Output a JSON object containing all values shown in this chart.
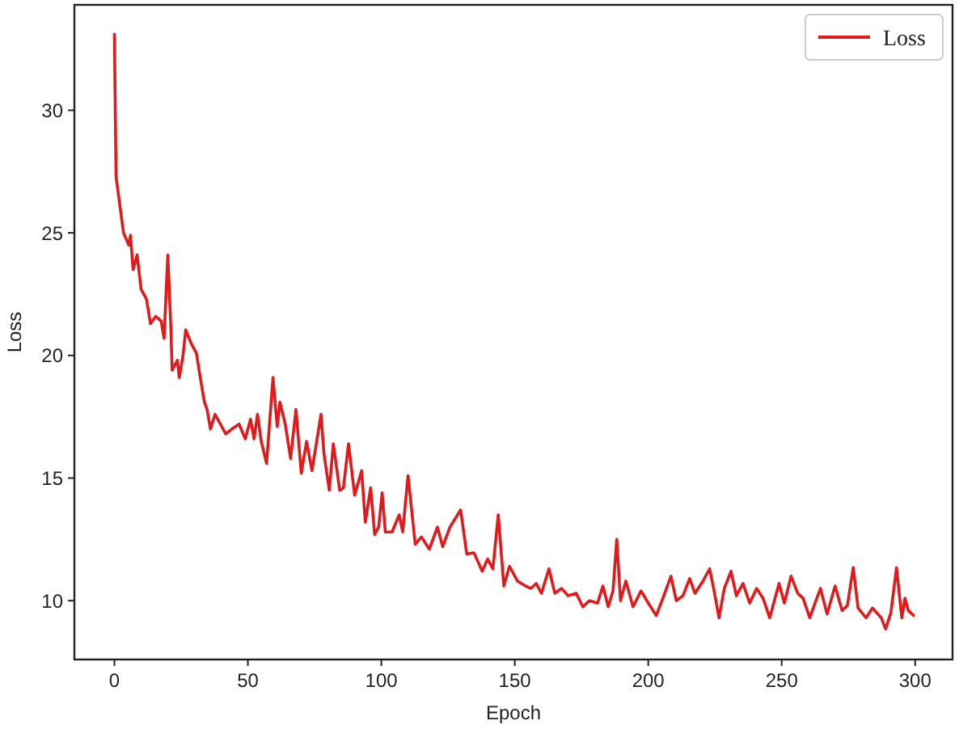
{
  "chart_data": {
    "type": "line",
    "xlabel": "Epoch",
    "ylabel": "Loss",
    "xlim": [
      -15,
      314
    ],
    "ylim": [
      7.6,
      34.3
    ],
    "xticks": [
      0,
      50,
      100,
      150,
      200,
      250,
      300
    ],
    "yticks": [
      10,
      15,
      20,
      25,
      30
    ],
    "grid": false,
    "legend": "top right",
    "line_style": "solid",
    "marker": "none",
    "series": [
      {
        "name": "Loss",
        "color": "#e31a1c",
        "x": [
          0,
          0.6,
          3.4,
          5.4,
          6,
          7,
          8.5,
          10,
          12,
          13.5,
          15.5,
          17.5,
          18.6,
          20,
          21.2,
          21.6,
          23.6,
          24.3,
          25.7,
          26.7,
          28.7,
          30.7,
          32,
          33.7,
          34.7,
          36,
          37.7,
          39.7,
          41.7,
          44,
          46.7,
          49,
          51,
          52.3,
          53.6,
          55,
          57,
          59.4,
          61,
          62,
          64,
          66,
          68,
          70,
          72,
          74,
          77.4,
          78.5,
          80.5,
          82,
          84.4,
          85.8,
          87.7,
          90,
          92.6,
          94,
          96,
          97.5,
          99,
          100.3,
          101.5,
          104,
          106.7,
          108,
          110,
          112.7,
          115,
          118,
          121,
          123,
          125.7,
          129.7,
          132,
          134.7,
          137.8,
          139.8,
          141.8,
          143.8,
          145.9,
          148,
          151,
          154,
          156,
          158,
          160,
          162.8,
          165,
          167.5,
          170,
          173,
          175.5,
          178,
          181,
          183,
          185,
          186.8,
          188.2,
          189.6,
          191.6,
          194.3,
          197.3,
          200.3,
          203,
          205.5,
          208.5,
          210.5,
          213,
          215.5,
          217.5,
          220.5,
          223,
          224.5,
          226.5,
          228.5,
          231,
          233,
          235.5,
          238,
          240.6,
          243,
          245.5,
          249,
          251,
          253.5,
          256,
          258,
          260.5,
          262.5,
          264.5,
          267,
          270,
          272.6,
          274.6,
          276.8,
          278.6,
          281.6,
          284,
          287.3,
          288.9,
          290.9,
          293,
          295,
          296.2,
          297.4,
          299.4
        ],
        "values": [
          33.1,
          27.3,
          25,
          24.5,
          24.9,
          23.5,
          24.1,
          22.7,
          22.3,
          21.3,
          21.6,
          21.4,
          20.7,
          24.1,
          21,
          19.4,
          19.8,
          19.1,
          20,
          21.05,
          20.5,
          20.1,
          19.2,
          18.1,
          17.8,
          17,
          17.6,
          17.2,
          16.8,
          17,
          17.2,
          16.6,
          17.4,
          16.6,
          17.6,
          16.5,
          15.6,
          19.1,
          17.1,
          18.1,
          17.2,
          15.8,
          17.8,
          15.2,
          16.5,
          15.3,
          17.6,
          16,
          14.5,
          16.4,
          14.5,
          14.6,
          16.4,
          14.3,
          15.3,
          13.2,
          14.6,
          12.7,
          13,
          14.4,
          12.8,
          12.8,
          13.5,
          12.8,
          15.1,
          12.3,
          12.6,
          12.1,
          13,
          12.2,
          13,
          13.7,
          11.9,
          11.95,
          11.2,
          11.7,
          11.3,
          13.5,
          10.6,
          11.4,
          10.8,
          10.6,
          10.5,
          10.7,
          10.3,
          11.3,
          10.3,
          10.5,
          10.2,
          10.3,
          9.75,
          10,
          9.9,
          10.6,
          9.75,
          10.4,
          12.5,
          10,
          10.8,
          9.75,
          10.4,
          9.85,
          9.4,
          10.1,
          11,
          10,
          10.2,
          10.9,
          10.3,
          10.8,
          11.3,
          10.5,
          9.3,
          10.5,
          11.2,
          10.2,
          10.7,
          9.9,
          10.5,
          10.1,
          9.3,
          10.7,
          9.9,
          11,
          10.3,
          10.1,
          9.3,
          9.9,
          10.5,
          9.45,
          10.6,
          9.6,
          9.8,
          11.35,
          9.7,
          9.3,
          9.7,
          9.3,
          8.85,
          9.5,
          11.35,
          9.3,
          10.1,
          9.6,
          9.4
        ]
      }
    ]
  }
}
